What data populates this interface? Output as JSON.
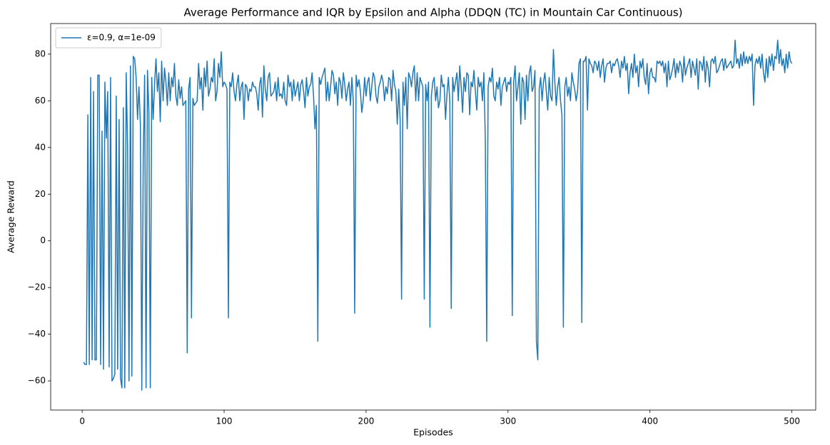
{
  "chart_data": {
    "type": "line",
    "title": "Average Performance and IQR by Epsilon and Alpha (DDQN (TC) in Mountain Car Continuous)",
    "x_label": "Episodes",
    "y_label": "Average Reward",
    "legend": "upper left",
    "xlim": [
      -22.2,
      516.8
    ],
    "ylim": [
      -72.5,
      93.1
    ],
    "xticks": [
      0,
      100,
      200,
      300,
      400,
      500
    ],
    "yticks": [
      {
        "value": -60,
        "label": "−60"
      },
      {
        "value": -40,
        "label": "−40"
      },
      {
        "value": -20,
        "label": "−20"
      },
      0,
      20,
      40,
      60,
      80
    ],
    "x": [
      1,
      2,
      3,
      4,
      5,
      6,
      7,
      8,
      9,
      10,
      11,
      12,
      13,
      14,
      15,
      16,
      17,
      18,
      19,
      20,
      21,
      22,
      23,
      24,
      25,
      26,
      27,
      28,
      29,
      30,
      31,
      32,
      33,
      34,
      35,
      36,
      37,
      38,
      39,
      40,
      41,
      42,
      43,
      44,
      45,
      46,
      47,
      48,
      49,
      50,
      51,
      52,
      53,
      54,
      55,
      56,
      57,
      58,
      59,
      60,
      61,
      62,
      63,
      64,
      65,
      66,
      67,
      68,
      69,
      70,
      71,
      72,
      73,
      74,
      75,
      76,
      77,
      78,
      79,
      80,
      81,
      82,
      83,
      84,
      85,
      86,
      87,
      88,
      89,
      90,
      91,
      92,
      93,
      94,
      95,
      96,
      97,
      98,
      99,
      100,
      101,
      102,
      103,
      104,
      105,
      106,
      107,
      108,
      109,
      110,
      111,
      112,
      113,
      114,
      115,
      116,
      117,
      118,
      119,
      120,
      121,
      122,
      123,
      124,
      125,
      126,
      127,
      128,
      129,
      130,
      131,
      132,
      133,
      134,
      135,
      136,
      137,
      138,
      139,
      140,
      141,
      142,
      143,
      144,
      145,
      146,
      147,
      148,
      149,
      150,
      151,
      152,
      153,
      154,
      155,
      156,
      157,
      158,
      159,
      160,
      161,
      162,
      163,
      164,
      165,
      166,
      167,
      168,
      169,
      170,
      171,
      172,
      173,
      174,
      175,
      176,
      177,
      178,
      179,
      180,
      181,
      182,
      183,
      184,
      185,
      186,
      187,
      188,
      189,
      190,
      191,
      192,
      193,
      194,
      195,
      196,
      197,
      198,
      199,
      200,
      201,
      202,
      203,
      204,
      205,
      206,
      207,
      208,
      209,
      210,
      211,
      212,
      213,
      214,
      215,
      216,
      217,
      218,
      219,
      220,
      221,
      222,
      223,
      224,
      225,
      226,
      227,
      228,
      229,
      230,
      231,
      232,
      233,
      234,
      235,
      236,
      237,
      238,
      239,
      240,
      241,
      242,
      243,
      244,
      245,
      246,
      247,
      248,
      249,
      250,
      251,
      252,
      253,
      254,
      255,
      256,
      257,
      258,
      259,
      260,
      261,
      262,
      263,
      264,
      265,
      266,
      267,
      268,
      269,
      270,
      271,
      272,
      273,
      274,
      275,
      276,
      277,
      278,
      279,
      280,
      281,
      282,
      283,
      284,
      285,
      286,
      287,
      288,
      289,
      290,
      291,
      292,
      293,
      294,
      295,
      296,
      297,
      298,
      299,
      300,
      301,
      302,
      303,
      304,
      305,
      306,
      307,
      308,
      309,
      310,
      311,
      312,
      313,
      314,
      315,
      316,
      317,
      318,
      319,
      320,
      321,
      322,
      323,
      324,
      325,
      326,
      327,
      328,
      329,
      330,
      331,
      332,
      333,
      334,
      335,
      336,
      337,
      338,
      339,
      340,
      341,
      342,
      343,
      344,
      345,
      346,
      347,
      348,
      349,
      350,
      351,
      352,
      353,
      354,
      355,
      356,
      357,
      358,
      359,
      360,
      361,
      362,
      363,
      364,
      365,
      366,
      367,
      368,
      369,
      370,
      371,
      372,
      373,
      374,
      375,
      376,
      377,
      378,
      379,
      380,
      381,
      382,
      383,
      384,
      385,
      386,
      387,
      388,
      389,
      390,
      391,
      392,
      393,
      394,
      395,
      396,
      397,
      398,
      399,
      400,
      401,
      402,
      403,
      404,
      405,
      406,
      407,
      408,
      409,
      410,
      411,
      412,
      413,
      414,
      415,
      416,
      417,
      418,
      419,
      420,
      421,
      422,
      423,
      424,
      425,
      426,
      427,
      428,
      429,
      430,
      431,
      432,
      433,
      434,
      435,
      436,
      437,
      438,
      439,
      440,
      441,
      442,
      443,
      444,
      445,
      446,
      447,
      448,
      449,
      450,
      451,
      452,
      453,
      454,
      455,
      456,
      457,
      458,
      459,
      460,
      461,
      462,
      463,
      464,
      465,
      466,
      467,
      468,
      469,
      470,
      471,
      472,
      473,
      474,
      475,
      476,
      477,
      478,
      479,
      480,
      481,
      482,
      483,
      484,
      485,
      486,
      487,
      488,
      489,
      490,
      491,
      492,
      493,
      494,
      495,
      496,
      497,
      498,
      499,
      500
    ],
    "series": [
      {
        "name": "ε=0.9, α=1e-09",
        "color": "#1f77b4",
        "values": [
          -52,
          -53,
          -53,
          54,
          -53,
          70,
          -51,
          64,
          -51,
          -51,
          71,
          71,
          -53,
          47,
          -55,
          68,
          44,
          64,
          -54,
          70,
          -60,
          -59,
          -57,
          62,
          -55,
          52,
          -59,
          -63,
          57,
          -63,
          72,
          40,
          -60,
          75,
          -58,
          79,
          78,
          70,
          52,
          66,
          50,
          -64,
          35,
          71,
          -63,
          73,
          55,
          -63,
          70,
          52,
          67,
          78,
          64,
          72,
          51,
          77,
          60,
          74,
          68,
          58,
          72,
          60,
          70,
          66,
          76,
          62,
          58,
          69,
          61,
          66,
          58,
          59,
          60,
          -48,
          65,
          70,
          -33,
          61,
          58,
          59,
          60,
          76,
          65,
          70,
          56,
          74,
          66,
          77,
          62,
          65,
          70,
          68,
          78,
          60,
          64,
          76,
          70,
          81,
          66,
          68,
          67,
          65,
          -33,
          68,
          66,
          72,
          64,
          60,
          67,
          71,
          60,
          66,
          68,
          52,
          67,
          66,
          60,
          65,
          64,
          68,
          66,
          66,
          63,
          56,
          67,
          70,
          53,
          75,
          65,
          60,
          70,
          72,
          62,
          63,
          64,
          68,
          60,
          70,
          62,
          63,
          61,
          68,
          60,
          58,
          71,
          66,
          68,
          60,
          69,
          62,
          65,
          68,
          60,
          67,
          69,
          64,
          57,
          70,
          62,
          66,
          67,
          72,
          62,
          48,
          58,
          -43,
          70,
          67,
          70,
          72,
          74,
          60,
          68,
          60,
          66,
          73,
          71,
          63,
          68,
          58,
          70,
          68,
          61,
          72,
          67,
          60,
          65,
          68,
          58,
          70,
          60,
          -31,
          71,
          66,
          69,
          64,
          55,
          60,
          70,
          62,
          68,
          70,
          60,
          66,
          72,
          70,
          62,
          59,
          66,
          68,
          71,
          68,
          60,
          66,
          63,
          70,
          69,
          60,
          73,
          67,
          64,
          50,
          65,
          52,
          -25,
          68,
          58,
          70,
          48,
          72,
          70,
          66,
          72,
          75,
          60,
          72,
          60,
          70,
          68,
          66,
          -25,
          67,
          60,
          68,
          -37,
          62,
          68,
          70,
          60,
          66,
          57,
          60,
          71,
          66,
          67,
          52,
          63,
          70,
          60,
          -29,
          70,
          64,
          68,
          72,
          60,
          75,
          66,
          55,
          70,
          64,
          72,
          71,
          54,
          68,
          66,
          73,
          64,
          56,
          70,
          66,
          68,
          60,
          72,
          44,
          -43,
          66,
          70,
          68,
          74,
          62,
          60,
          68,
          65,
          70,
          58,
          66,
          68,
          70,
          64,
          68,
          67,
          70,
          -32,
          68,
          75,
          60,
          66,
          72,
          50,
          70,
          68,
          52,
          71,
          60,
          72,
          75,
          64,
          66,
          73,
          -43,
          -51,
          65,
          70,
          60,
          68,
          72,
          64,
          56,
          70,
          62,
          60,
          82,
          68,
          58,
          66,
          70,
          60,
          54,
          -37,
          66,
          70,
          62,
          66,
          60,
          72,
          68,
          65,
          60,
          64,
          76,
          78,
          -35,
          77,
          77,
          79,
          56,
          78,
          76,
          75,
          72,
          77,
          76,
          73,
          77,
          70,
          75,
          78,
          68,
          74,
          76,
          76,
          77,
          72,
          76,
          75,
          77,
          78,
          75,
          70,
          77,
          74,
          79,
          73,
          76,
          63,
          72,
          76,
          70,
          80,
          72,
          75,
          66,
          77,
          74,
          78,
          70,
          67,
          76,
          63,
          72,
          74,
          70,
          70,
          68,
          77,
          76,
          77,
          75,
          77,
          72,
          76,
          66,
          77,
          69,
          71,
          74,
          78,
          70,
          76,
          72,
          77,
          75,
          68,
          79,
          71,
          74,
          76,
          78,
          70,
          77,
          74,
          71,
          78,
          65,
          77,
          76,
          73,
          79,
          68,
          77,
          74,
          66,
          77,
          78,
          76,
          79,
          72,
          73,
          75,
          77,
          78,
          73,
          78,
          74,
          75,
          76,
          77,
          74,
          75,
          86,
          76,
          78,
          74,
          80,
          75,
          81,
          76,
          79,
          76,
          79,
          77,
          80,
          58,
          75,
          78,
          76,
          79,
          74,
          80,
          72,
          68,
          78,
          70,
          79,
          75,
          80,
          73,
          79,
          78,
          86,
          76,
          82,
          75,
          78,
          72,
          80,
          74,
          81,
          77,
          76
        ]
      }
    ]
  }
}
